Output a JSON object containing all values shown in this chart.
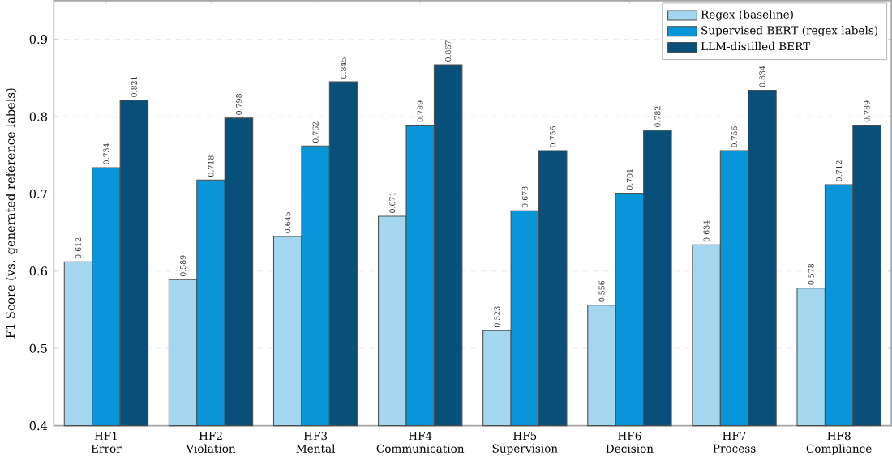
{
  "chart_data": {
    "type": "bar",
    "ylabel": "F1 Score (vs. generated reference labels)",
    "categories": [
      "HF1 Error",
      "HF2 Violation",
      "HF3 Mental",
      "HF4 Communication",
      "HF5 Supervision",
      "HF6 Decision",
      "HF7 Process",
      "HF8 Compliance"
    ],
    "series": [
      {
        "name": "Regex (baseline)",
        "color": "#a4d6f0",
        "values": [
          0.612,
          0.589,
          0.645,
          0.671,
          0.523,
          0.556,
          0.634,
          0.578
        ]
      },
      {
        "name": "Supervised BERT (regex labels)",
        "color": "#0896d8",
        "values": [
          0.734,
          0.718,
          0.762,
          0.789,
          0.678,
          0.701,
          0.756,
          0.712
        ]
      },
      {
        "name": "LLM-distilled BERT",
        "color": "#08507a",
        "values": [
          0.821,
          0.798,
          0.845,
          0.867,
          0.756,
          0.782,
          0.834,
          0.789
        ]
      }
    ],
    "ylim": [
      0.4,
      0.95
    ],
    "yticks": [
      0.4,
      0.5,
      0.6,
      0.7,
      0.8,
      0.9
    ],
    "grid": "y",
    "legend": "top right",
    "data_labels": true
  }
}
